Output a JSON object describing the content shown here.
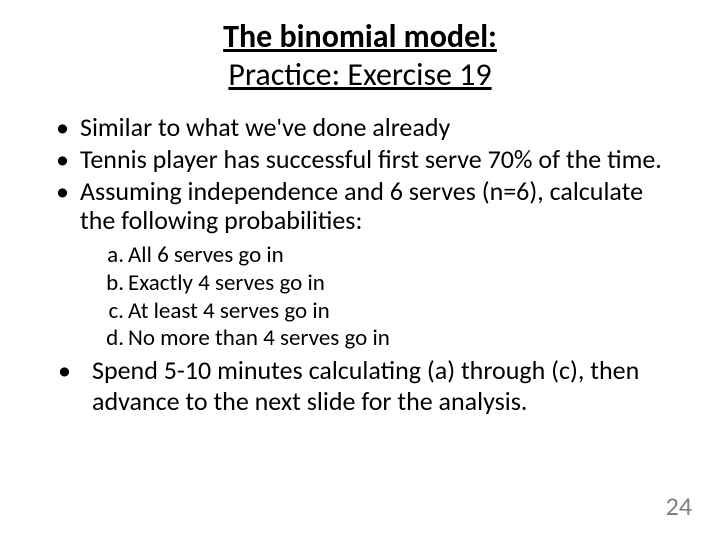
{
  "title": {
    "line1": "The binomial model:",
    "line2": "Practice:  Exercise 19"
  },
  "bullets": [
    "Similar to what we've done already",
    "Tennis player has successful first serve 70% of the time.",
    "Assuming independence and 6 serves (n=6), calculate the following probabilities:"
  ],
  "subitems": [
    {
      "marker": "a.",
      "text": "All 6 serves go in"
    },
    {
      "marker": "b.",
      "text": "Exactly 4 serves go in"
    },
    {
      "marker": "c.",
      "text": "At least 4 serves go in"
    },
    {
      "marker": "d.",
      "text": "No more than 4 serves go in"
    }
  ],
  "final_bullet": "Spend 5-10 minutes calculating (a) through (c), then advance to the next slide for the analysis.",
  "page_number": "24",
  "style": {
    "background_color": "#ffffff",
    "text_color": "#000000",
    "page_number_color": "#7f7f7f",
    "title_fontsize": 32,
    "body_fontsize": 26,
    "sub_fontsize": 23,
    "font_family": "Calibri"
  }
}
